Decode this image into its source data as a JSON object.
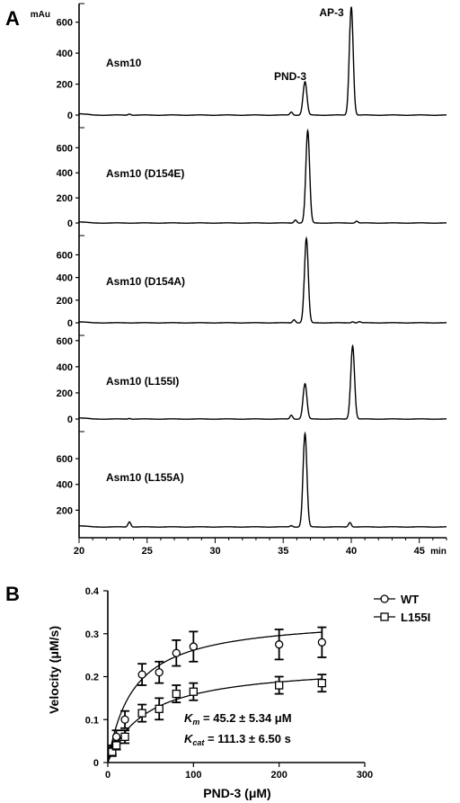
{
  "panel_a": {
    "letter": "A",
    "y_unit": "mAu",
    "peak_labels": [
      {
        "text": "PND-3",
        "x": 36.6
      },
      {
        "text": "AP-3",
        "x": 40.0
      }
    ],
    "x_ticks": [
      20,
      25,
      30,
      35,
      40,
      45
    ],
    "x_unit": "min",
    "xlim": [
      20,
      47
    ]
  },
  "panel_b": {
    "letter": "B",
    "annotation_km": {
      "sym": "K",
      "sub": "m",
      "rest": " = 45.2 ± 5.34 μM"
    },
    "annotation_kcat": {
      "sym": "K",
      "sub": "cat",
      "rest": " = 111.3 ± 6.50 s"
    }
  },
  "chart_data": [
    {
      "type": "line",
      "title": "Asm10",
      "ylim": [
        0,
        720
      ],
      "y_ticks": [
        0,
        200,
        400,
        600
      ],
      "peaks": [
        {
          "x": 23.7,
          "height": 8
        },
        {
          "x": 35.6,
          "height": 20
        },
        {
          "x": 36.6,
          "height": 215
        },
        {
          "x": 40.0,
          "height": 700
        }
      ]
    },
    {
      "type": "line",
      "title": "Asm10 (D154E)",
      "ylim": [
        0,
        760
      ],
      "y_ticks": [
        0,
        200,
        400,
        600
      ],
      "peaks": [
        {
          "x": 35.9,
          "height": 25
        },
        {
          "x": 36.8,
          "height": 735
        },
        {
          "x": 40.4,
          "height": 15
        }
      ]
    },
    {
      "type": "line",
      "title": "Asm10 (D154A)",
      "ylim": [
        0,
        770
      ],
      "y_ticks": [
        0,
        200,
        400,
        600
      ],
      "peaks": [
        {
          "x": 35.8,
          "height": 28
        },
        {
          "x": 36.7,
          "height": 745
        },
        {
          "x": 40.1,
          "height": 10
        },
        {
          "x": 40.6,
          "height": 10
        }
      ]
    },
    {
      "type": "line",
      "title": "Asm10 (L155I)",
      "ylim": [
        0,
        640
      ],
      "y_ticks": [
        0,
        200,
        400,
        600
      ],
      "peaks": [
        {
          "x": 23.7,
          "height": 5
        },
        {
          "x": 35.6,
          "height": 30
        },
        {
          "x": 36.6,
          "height": 270
        },
        {
          "x": 40.1,
          "height": 560
        }
      ]
    },
    {
      "type": "line",
      "title": "Asm10 (L155A)",
      "ylim": [
        0,
        810
      ],
      "y_ticks": [
        200,
        400,
        600
      ],
      "baseline": 70,
      "peaks": [
        {
          "x": 23.7,
          "height": 40
        },
        {
          "x": 35.6,
          "height": 10
        },
        {
          "x": 36.6,
          "height": 725
        },
        {
          "x": 39.9,
          "height": 35
        }
      ]
    },
    {
      "type": "scatter",
      "xlabel": "PND-3 (μM)",
      "ylabel": "Velocity (μM/s)",
      "xlim": [
        0,
        300
      ],
      "ylim": [
        0,
        0.4
      ],
      "x_ticks": [
        0,
        100,
        200,
        300
      ],
      "y_ticks": [
        0,
        0.1,
        0.2,
        0.3,
        0.4
      ],
      "y_tick_labels": [
        "0",
        "0.1",
        "0.2",
        "0.3",
        "0.4"
      ],
      "legend_position": "top-right",
      "series": [
        {
          "name": "WT",
          "marker": "circle",
          "vmax": 0.34,
          "km": 30,
          "points": [
            {
              "x": 5,
              "y": 0.03,
              "err": 0.01
            },
            {
              "x": 10,
              "y": 0.06,
              "err": 0.015
            },
            {
              "x": 20,
              "y": 0.1,
              "err": 0.02
            },
            {
              "x": 40,
              "y": 0.205,
              "err": 0.025
            },
            {
              "x": 60,
              "y": 0.21,
              "err": 0.025
            },
            {
              "x": 80,
              "y": 0.255,
              "err": 0.03
            },
            {
              "x": 100,
              "y": 0.27,
              "err": 0.035
            },
            {
              "x": 200,
              "y": 0.275,
              "err": 0.035
            },
            {
              "x": 250,
              "y": 0.28,
              "err": 0.035
            }
          ]
        },
        {
          "name": "L155I",
          "marker": "square",
          "vmax": 0.23,
          "km": 45.2,
          "points": [
            {
              "x": 5,
              "y": 0.025,
              "err": 0.01
            },
            {
              "x": 10,
              "y": 0.04,
              "err": 0.01
            },
            {
              "x": 20,
              "y": 0.06,
              "err": 0.015
            },
            {
              "x": 40,
              "y": 0.115,
              "err": 0.02
            },
            {
              "x": 60,
              "y": 0.125,
              "err": 0.025
            },
            {
              "x": 80,
              "y": 0.16,
              "err": 0.02
            },
            {
              "x": 100,
              "y": 0.165,
              "err": 0.02
            },
            {
              "x": 200,
              "y": 0.18,
              "err": 0.02
            },
            {
              "x": 250,
              "y": 0.185,
              "err": 0.02
            }
          ]
        }
      ]
    }
  ]
}
